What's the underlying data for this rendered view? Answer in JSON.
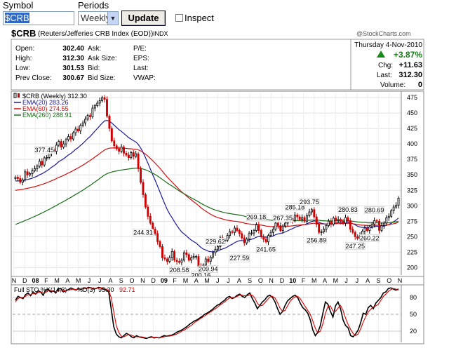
{
  "form": {
    "symbol_label": "Symbol",
    "symbol_value": "$CRB",
    "periods_label": "Periods",
    "periods_value": "Weekly",
    "update_label": "Update",
    "inspect_label": "Inspect"
  },
  "header": {
    "ticker": "$CRB",
    "name": "(Reuters/Jefferies CRB Index (EOD))",
    "exchange": "INDX",
    "watermark": "@StockCharts.com",
    "date": "Thursday  4-Nov-2010",
    "change_pct": "+3.87%",
    "chg_label": "Chg:",
    "chg_value": "+11.63",
    "last_label": "Last:",
    "last_value": "312.30",
    "volume_label": "Volume:",
    "volume_value": "0",
    "stats": [
      {
        "label": "Open:",
        "value": "302.40"
      },
      {
        "label": "High:",
        "value": "312.30"
      },
      {
        "label": "Low:",
        "value": "301.53"
      },
      {
        "label": "Prev Close:",
        "value": "300.67"
      }
    ],
    "stats2": [
      "Ask:",
      "Ask Size:",
      "Bid:",
      "Bid Size:"
    ],
    "stats3": [
      "P/E:",
      "EPS:",
      "Last:",
      "VWAP:"
    ]
  },
  "colors": {
    "ema20": "#1a1a9a",
    "ema60": "#d01010",
    "ema260": "#1a6e1a",
    "up": "#000000",
    "down": "#cc0000",
    "sto_k": "#000000",
    "sto_d": "#dd0000"
  },
  "chart_data": [
    {
      "type": "candlestick",
      "legend_position": "top-left",
      "legend": [
        {
          "text": "$CRB (Weekly) 312.30",
          "color": "#000000"
        },
        {
          "text": "EMA(20) 283.26",
          "color": "#1a1a9a"
        },
        {
          "text": "EMA(60) 274.55",
          "color": "#d01010"
        },
        {
          "text": "EMA(260) 288.91",
          "color": "#1a6e1a"
        }
      ],
      "y_ticks": [
        475,
        450,
        425,
        400,
        375,
        350,
        325,
        300,
        275,
        250,
        225,
        200
      ],
      "ylim": [
        188,
        483
      ],
      "x_ticks": [
        "N",
        "D",
        "08",
        "F",
        "M",
        "A",
        "M",
        "J",
        "J",
        "A",
        "S",
        "O",
        "N",
        "D",
        "09",
        "F",
        "M",
        "A",
        "M",
        "J",
        "J",
        "A",
        "S",
        "O",
        "N",
        "D",
        "10",
        "F",
        "M",
        "A",
        "M",
        "J",
        "J",
        "A",
        "S",
        "O",
        "N"
      ],
      "grid": true,
      "closes": [
        346,
        344,
        338,
        342,
        355,
        350,
        352,
        357,
        360,
        364,
        372,
        366,
        377.45,
        378,
        385,
        392,
        388,
        398,
        404,
        395,
        400,
        407,
        412,
        408,
        418,
        424,
        421,
        430,
        434,
        440,
        446,
        444,
        458,
        462,
        466,
        470,
        475,
        472,
        445,
        425,
        405,
        397,
        392,
        388,
        395,
        385,
        382,
        378,
        386,
        380,
        384,
        360,
        338,
        318,
        298,
        283,
        272,
        262,
        255,
        242,
        234,
        216,
        214,
        210,
        216,
        226,
        212,
        210,
        208.58,
        212,
        224,
        221,
        212,
        216,
        218,
        218,
        202,
        200.16,
        204,
        214,
        209.94,
        217,
        224,
        229.62,
        234,
        248,
        244,
        244.31,
        252,
        258,
        257,
        264,
        260,
        255,
        248,
        240,
        246,
        255,
        256,
        260,
        269.18,
        260,
        250,
        246,
        241.65,
        252,
        257,
        262,
        272,
        268,
        260,
        267.35,
        272,
        276,
        280,
        276,
        285.18,
        282,
        278,
        281,
        275,
        284,
        290,
        293.75,
        282,
        270,
        256.89,
        258,
        262,
        268,
        275,
        270,
        280,
        276,
        278,
        275,
        272,
        280.83,
        276,
        262,
        257,
        250,
        247.25,
        252,
        259,
        264,
        260,
        266,
        270,
        276,
        275,
        260.22,
        268,
        272,
        280.69,
        283,
        292,
        298,
        300.67,
        312.3
      ],
      "annotations": [
        "377.45",
        "244.31",
        "208.58",
        "200.16",
        "229.62",
        "209.94",
        "269.18",
        "227.59",
        "241.65",
        "285.18",
        "267.35",
        "293.75",
        "256.89",
        "280.83",
        "247.25",
        "280.69",
        "260.22"
      ],
      "ema_values": {
        "ema20_start_end": [
          340,
          283.26
        ],
        "ema60_start_end": [
          325,
          274.55
        ],
        "ema260_start_end": [
          268,
          288.91
        ]
      }
    },
    {
      "type": "line",
      "legend": [
        {
          "text": "Full STO %K(14,3)",
          "color": "#000000"
        },
        {
          "text": "%D(3)",
          "color": "#000000"
        },
        {
          "text": "95.30",
          "color": "#000000"
        },
        {
          "text": "92.71",
          "color": "#dd0000"
        }
      ],
      "y_ticks": [
        80,
        50,
        20
      ],
      "ylim": [
        0,
        100
      ],
      "series": [
        {
          "name": "%K",
          "values": [
            75,
            82,
            80,
            78,
            85,
            88,
            83,
            90,
            86,
            92,
            90,
            84,
            93,
            95,
            90,
            92,
            88,
            95,
            96,
            90,
            92,
            94,
            97,
            95,
            93,
            96,
            94,
            97,
            96,
            98,
            97,
            95,
            96,
            98,
            97,
            95,
            93,
            90,
            60,
            28,
            15,
            10,
            8,
            12,
            16,
            14,
            10,
            8,
            12,
            10,
            9,
            8,
            7,
            9,
            10,
            8,
            9,
            8,
            10,
            12,
            11,
            12,
            13,
            15,
            18,
            20,
            22,
            25,
            28,
            32,
            35,
            38,
            40,
            43,
            46,
            50,
            52,
            55,
            58,
            62,
            66,
            68,
            72,
            75,
            80,
            82,
            78,
            80,
            84,
            86,
            82,
            80,
            85,
            88,
            78,
            70,
            60,
            66,
            72,
            76,
            82,
            84,
            80,
            72,
            60,
            50,
            55,
            66,
            74,
            78,
            82,
            84,
            80,
            70,
            62,
            58,
            52,
            40,
            22,
            12,
            18,
            30,
            52,
            72,
            68,
            55,
            45,
            65,
            72,
            60,
            40,
            30,
            26,
            12,
            10,
            15,
            22,
            35,
            52,
            50,
            62,
            66,
            60,
            70,
            75,
            80,
            88,
            90,
            96,
            97,
            95,
            93,
            95.3
          ]
        },
        {
          "name": "%D",
          "values": [
            72,
            78,
            80,
            80,
            82,
            85,
            85,
            87,
            86,
            89,
            90,
            88,
            89,
            92,
            92,
            91,
            90,
            92,
            93,
            92,
            92,
            93,
            94,
            95,
            94,
            95,
            95,
            96,
            96,
            97,
            97,
            96,
            96,
            97,
            97,
            96,
            95,
            92,
            80,
            55,
            30,
            18,
            11,
            10,
            12,
            14,
            13,
            11,
            10,
            10,
            10,
            9,
            8,
            8,
            9,
            9,
            9,
            8,
            9,
            10,
            11,
            11,
            12,
            13,
            15,
            17,
            20,
            22,
            25,
            28,
            31,
            35,
            38,
            41,
            44,
            47,
            50,
            53,
            56,
            59,
            62,
            66,
            69,
            72,
            76,
            79,
            80,
            80,
            82,
            84,
            84,
            83,
            83,
            85,
            84,
            79,
            70,
            65,
            66,
            71,
            76,
            81,
            82,
            79,
            71,
            61,
            55,
            57,
            65,
            73,
            78,
            81,
            82,
            78,
            71,
            64,
            57,
            50,
            38,
            25,
            17,
            20,
            33,
            51,
            64,
            65,
            56,
            55,
            61,
            66,
            57,
            43,
            32,
            23,
            16,
            12,
            15,
            24,
            36,
            46,
            54,
            59,
            63,
            65,
            68,
            75,
            82,
            86,
            91,
            94,
            96,
            95,
            92.71
          ]
        }
      ]
    }
  ]
}
